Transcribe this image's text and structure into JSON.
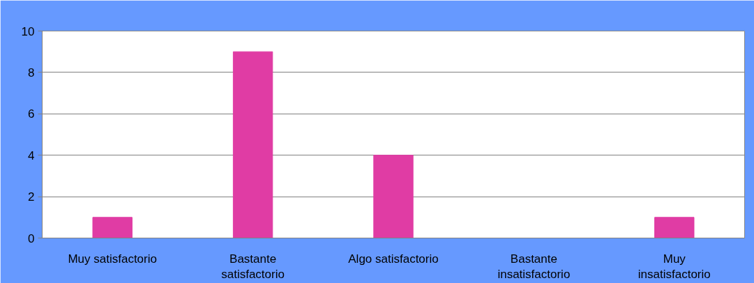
{
  "chart_data": {
    "type": "bar",
    "categories": [
      "Muy satisfactorio",
      "Bastante\nsatisfactorio",
      "Algo satisfactorio",
      "Bastante\ninsatisfactorio",
      "Muy\ninsatisfactorio"
    ],
    "values": [
      1,
      9,
      4,
      0,
      1
    ],
    "color": "#e03ca4",
    "ylim": [
      0,
      10
    ],
    "yticks": [
      0,
      2,
      4,
      6,
      8,
      10
    ],
    "grid": "y"
  }
}
